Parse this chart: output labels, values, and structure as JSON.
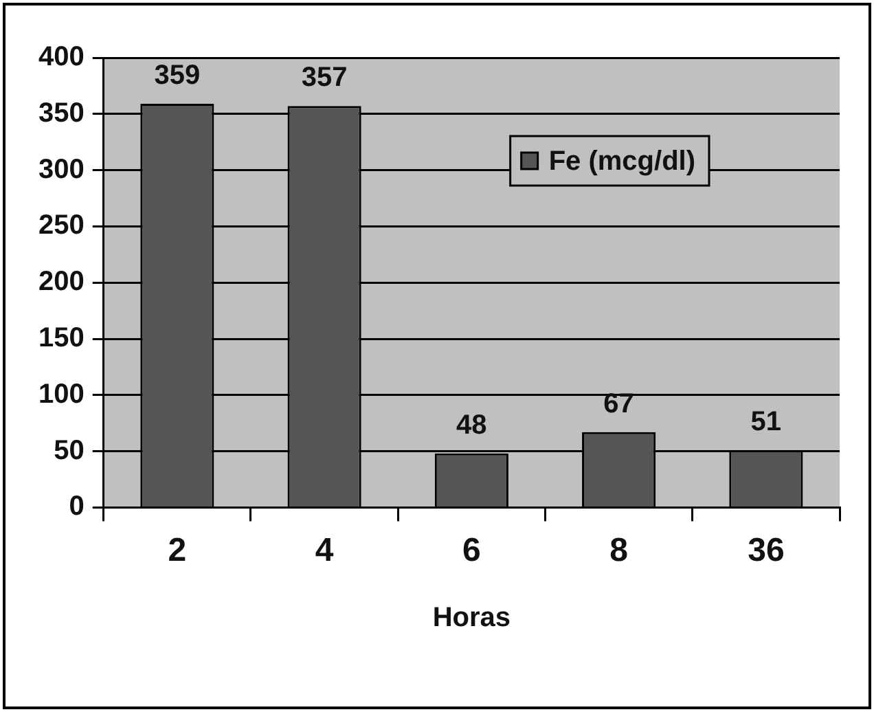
{
  "chart_data": {
    "type": "bar",
    "xlabel": "Horas",
    "categories": [
      "2",
      "4",
      "6",
      "8",
      "36"
    ],
    "series": [
      {
        "name": "Fe (mcg/dl)",
        "color": "#555555",
        "values": [
          359,
          357,
          48,
          67,
          51
        ]
      }
    ],
    "ylim": [
      0,
      400
    ],
    "yticks": [
      0,
      50,
      100,
      150,
      200,
      250,
      300,
      350,
      400
    ],
    "grid": "y",
    "legend": "top right",
    "data_labels": true
  }
}
